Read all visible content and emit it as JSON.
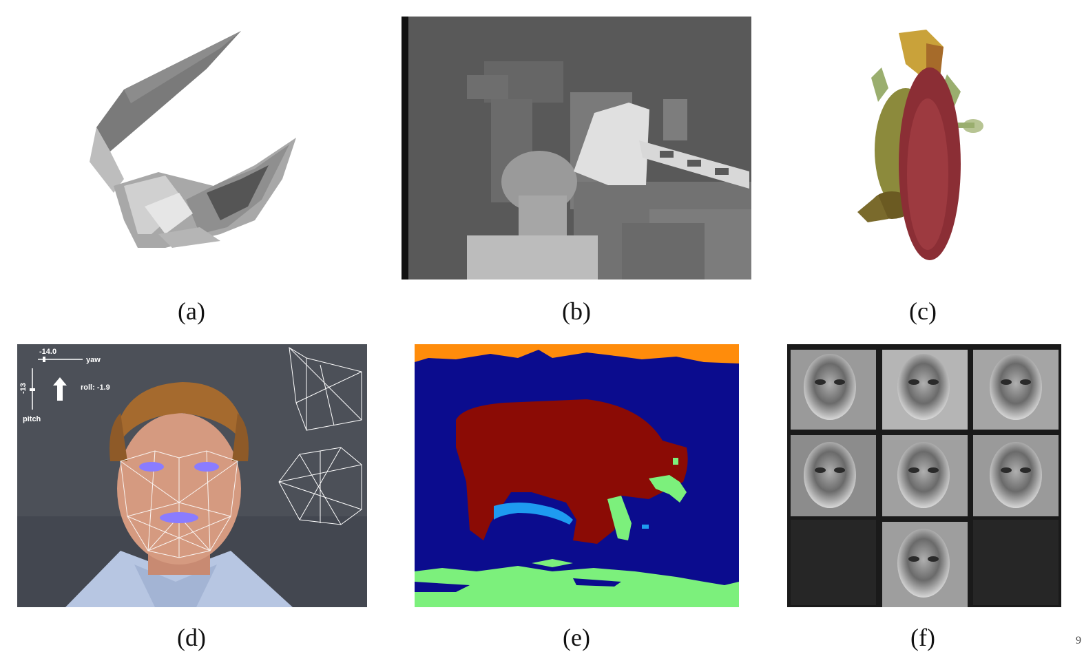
{
  "figure": {
    "captions": {
      "a": "(a)",
      "b": "(b)",
      "c": "(c)",
      "d": "(d)",
      "e": "(e)",
      "f": "(f)"
    },
    "corner_mark": "9"
  },
  "panel_d_overlay": {
    "yaw_value": "-14.0",
    "yaw_label": "yaw",
    "pitch_value": "-13",
    "pitch_label": "pitch",
    "roll_text": "roll: -1.9"
  },
  "colors": {
    "seg_background": "#0b0c8e",
    "seg_animal": "#8b0b05",
    "seg_grass": "#7cf07c",
    "seg_sky": "#ff8c0b",
    "seg_water": "#1e9bf0",
    "depth_far": "#595959",
    "depth_near": "#e6e6e6",
    "mesh_color": "#ffffff"
  }
}
